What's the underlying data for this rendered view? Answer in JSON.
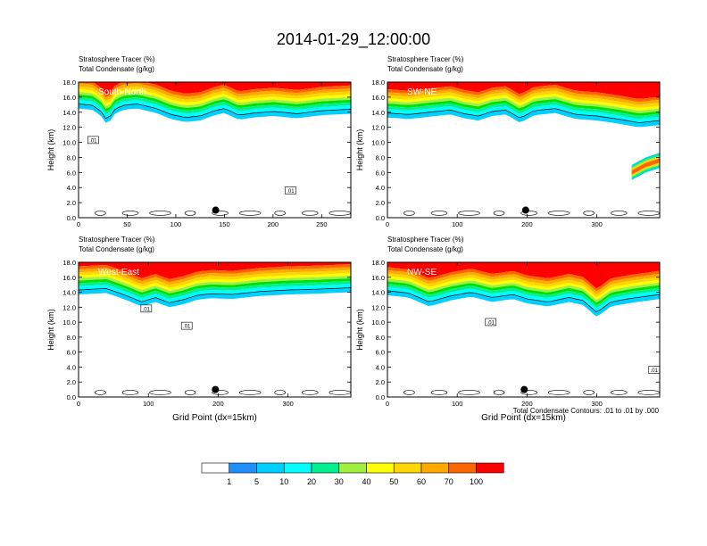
{
  "figure": {
    "title": "2014-01-29_12:00:00",
    "contour_note": "Total Condensate Contours: .01 to .01 by .000",
    "dot_color": "#000000"
  },
  "chart_data": [
    {
      "type": "heatmap",
      "field_label": "Stratosphere Tracer   (%)",
      "contour_label": "Total Condensate   (g/kg)",
      "panel_label": "South-North",
      "xlabel": "",
      "ylabel": "Height (km)",
      "xlim": [
        0,
        280
      ],
      "xticks": [
        0,
        50,
        100,
        150,
        200,
        250
      ],
      "ylim": [
        0,
        18
      ],
      "yticks": [
        "0.0",
        "2.0",
        "4.0",
        "6.0",
        "8.0",
        "10.0",
        "12.0",
        "14.0",
        "16.0",
        "18.0"
      ],
      "top_profile": [
        [
          0,
          16.4
        ],
        [
          15,
          16.2
        ],
        [
          25,
          15.2
        ],
        [
          30,
          14.0
        ],
        [
          35,
          15.5
        ],
        [
          45,
          16.2
        ],
        [
          60,
          16.4
        ],
        [
          80,
          15.8
        ],
        [
          95,
          15.0
        ],
        [
          110,
          14.6
        ],
        [
          125,
          14.8
        ],
        [
          140,
          15.5
        ],
        [
          150,
          15.8
        ],
        [
          165,
          14.9
        ],
        [
          180,
          15.2
        ],
        [
          200,
          15.4
        ],
        [
          225,
          15.1
        ],
        [
          250,
          15.5
        ],
        [
          280,
          15.7
        ]
      ],
      "plume": null,
      "contour_markers": [
        {
          "x": 15,
          "y": 10.2,
          "text": ".01"
        },
        {
          "x": 218,
          "y": 3.5,
          "text": ".01"
        }
      ],
      "dot": {
        "x": 141,
        "y": 1.0
      }
    },
    {
      "type": "heatmap",
      "field_label": "Stratosphere Tracer   (%)",
      "contour_label": "Total Condensate   (g/kg)",
      "panel_label": "SW-NE",
      "xlabel": "",
      "ylabel": "Height (km)",
      "xlim": [
        0,
        390
      ],
      "xticks": [
        0,
        100,
        200,
        300
      ],
      "ylim": [
        0,
        18
      ],
      "yticks": [
        "0.0",
        "2.0",
        "4.0",
        "6.0",
        "8.0",
        "10.0",
        "12.0",
        "14.0",
        "16.0",
        "18.0"
      ],
      "top_profile": [
        [
          0,
          15.2
        ],
        [
          30,
          15.0
        ],
        [
          60,
          15.3
        ],
        [
          90,
          15.6
        ],
        [
          110,
          15.1
        ],
        [
          130,
          14.8
        ],
        [
          150,
          15.4
        ],
        [
          170,
          15.6
        ],
        [
          190,
          14.5
        ],
        [
          210,
          15.5
        ],
        [
          240,
          15.8
        ],
        [
          270,
          15.0
        ],
        [
          300,
          14.8
        ],
        [
          330,
          14.4
        ],
        [
          360,
          13.9
        ],
        [
          390,
          14.2
        ]
      ],
      "plume": {
        "points": [
          [
            350,
            7.0
          ],
          [
            360,
            7.5
          ],
          [
            370,
            8.0
          ],
          [
            380,
            8.3
          ],
          [
            390,
            8.6
          ]
        ],
        "bottom_offset": 2.0
      },
      "contour_markers": [],
      "dot": {
        "x": 198,
        "y": 1.0
      }
    },
    {
      "type": "heatmap",
      "field_label": "Stratosphere Tracer   (%)",
      "contour_label": "Total Condensate   (g/kg)",
      "panel_label": "West-East",
      "xlabel": "Grid Point (dx=15km)",
      "ylabel": "Height (km)",
      "xlim": [
        0,
        390
      ],
      "xticks": [
        0,
        100,
        200,
        300
      ],
      "ylim": [
        0,
        18
      ],
      "yticks": [
        "0.0",
        "2.0",
        "4.0",
        "6.0",
        "8.0",
        "10.0",
        "12.0",
        "14.0",
        "16.0",
        "18.0"
      ],
      "top_profile": [
        [
          0,
          15.6
        ],
        [
          40,
          15.8
        ],
        [
          70,
          14.8
        ],
        [
          90,
          14.0
        ],
        [
          110,
          14.6
        ],
        [
          130,
          13.9
        ],
        [
          150,
          14.3
        ],
        [
          170,
          14.9
        ],
        [
          190,
          15.1
        ],
        [
          220,
          15.0
        ],
        [
          260,
          15.4
        ],
        [
          300,
          15.6
        ],
        [
          340,
          15.7
        ],
        [
          390,
          15.9
        ]
      ],
      "plume": null,
      "contour_markers": [
        {
          "x": 97,
          "y": 11.7,
          "text": ".01"
        },
        {
          "x": 155,
          "y": 9.4,
          "text": ".01"
        }
      ],
      "dot": {
        "x": 196,
        "y": 1.0
      }
    },
    {
      "type": "heatmap",
      "field_label": "Stratosphere Tracer   (%)",
      "contour_label": "Total Condensate   (g/kg)",
      "panel_label": "NW-SE",
      "xlabel": "Grid Point (dx=15km)",
      "ylabel": "Height (km)",
      "xlim": [
        0,
        390
      ],
      "xticks": [
        0,
        100,
        200,
        300
      ],
      "ylim": [
        0,
        18
      ],
      "yticks": [
        "0.0",
        "2.0",
        "4.0",
        "6.0",
        "8.0",
        "10.0",
        "12.0",
        "14.0",
        "16.0",
        "18.0"
      ],
      "top_profile": [
        [
          0,
          15.5
        ],
        [
          30,
          15.2
        ],
        [
          60,
          14.0
        ],
        [
          90,
          14.8
        ],
        [
          120,
          15.3
        ],
        [
          150,
          14.6
        ],
        [
          180,
          15.0
        ],
        [
          200,
          14.4
        ],
        [
          230,
          14.0
        ],
        [
          260,
          14.6
        ],
        [
          280,
          14.2
        ],
        [
          300,
          12.6
        ],
        [
          320,
          14.0
        ],
        [
          350,
          14.5
        ],
        [
          390,
          15.0
        ]
      ],
      "plume": null,
      "contour_markers": [
        {
          "x": 148,
          "y": 9.9,
          "text": ".01"
        },
        {
          "x": 382,
          "y": 3.5,
          "text": ".01"
        }
      ],
      "dot": {
        "x": 196,
        "y": 1.0
      }
    }
  ],
  "colorbar": {
    "levels": [
      "1",
      "5",
      "10",
      "20",
      "30",
      "40",
      "50",
      "60",
      "70",
      "100"
    ],
    "colors": [
      "#ffffff",
      "#1e90ff",
      "#00d0ff",
      "#00ffff",
      "#00f090",
      "#00e000",
      "#a0f040",
      "#ffff00",
      "#ffd700",
      "#ffaa00",
      "#ff6600",
      "#ff0000"
    ]
  }
}
